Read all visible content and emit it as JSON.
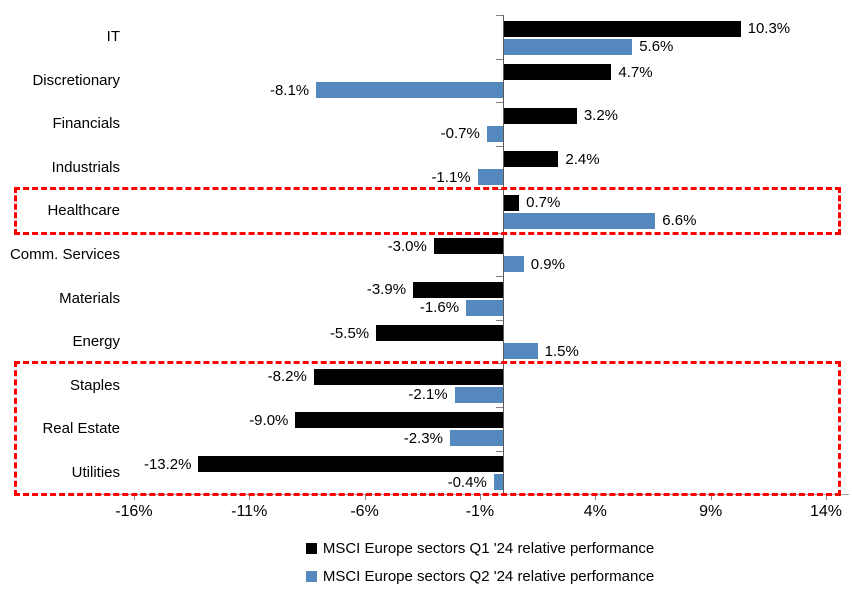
{
  "chart_data": {
    "type": "bar",
    "orientation": "horizontal",
    "categories": [
      "IT",
      "Discretionary",
      "Financials",
      "Industrials",
      "Healthcare",
      "Comm. Services",
      "Materials",
      "Energy",
      "Staples",
      "Real Estate",
      "Utilities"
    ],
    "series": [
      {
        "name": "MSCI Europe sectors Q1 '24 relative performance",
        "color": "#000000",
        "values": [
          10.3,
          4.7,
          3.2,
          2.4,
          0.7,
          -3.0,
          -3.9,
          -5.5,
          -8.2,
          -9.0,
          -13.2
        ]
      },
      {
        "name": "MSCI Europe sectors Q2 '24 relative performance",
        "color": "#5589be",
        "values": [
          5.6,
          -8.1,
          -0.7,
          -1.1,
          6.6,
          0.9,
          -1.6,
          1.5,
          -2.1,
          -2.3,
          -0.4
        ]
      }
    ],
    "value_suffix": "%",
    "value_decimals": 1,
    "xlim": [
      -17.5,
      15
    ],
    "x_ticks": [
      {
        "value": -16,
        "label": "-16%"
      },
      {
        "value": -11,
        "label": "-11%"
      },
      {
        "value": -6,
        "label": "-6%"
      },
      {
        "value": -1,
        "label": "-1%"
      },
      {
        "value": 4,
        "label": "4%"
      },
      {
        "value": 9,
        "label": "9%"
      },
      {
        "value": 14,
        "label": "14%"
      }
    ],
    "grid": false,
    "legend_position": "bottom",
    "legend": [
      "MSCI Europe sectors Q1 '24 relative performance",
      "MSCI Europe sectors Q2 '24 relative performance"
    ],
    "annotations": [
      {
        "type": "dashed-box",
        "color": "#ff0000",
        "from_category": "Healthcare",
        "to_category": "Healthcare"
      },
      {
        "type": "dashed-box",
        "color": "#ff0000",
        "from_category": "Staples",
        "to_category": "Utilities"
      }
    ],
    "colors": {
      "q1_bar": "#000000",
      "q2_bar": "#5589be",
      "highlight_dash": "#ff0000",
      "axis_line": "#595959",
      "baseline": "#a6a6a6"
    }
  }
}
